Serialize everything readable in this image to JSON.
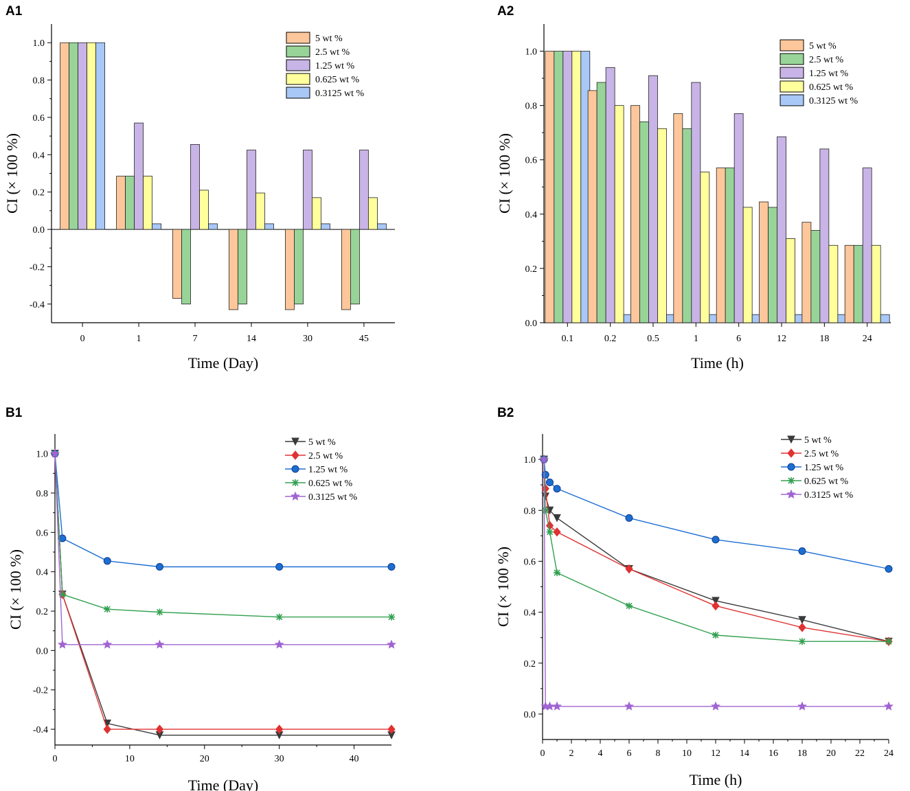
{
  "panels": {
    "A1": "A1",
    "A2": "A2",
    "B1": "B1",
    "B2": "B2"
  },
  "colors": {
    "5 wt%": "#fdc79b",
    "2.5 wt%": "#98d498",
    "1.25 wt%": "#c8b4e6",
    "0.625 wt%": "#ffff9c",
    "0.3125 wt%": "#a8c8f8",
    "line_5": "#3a3a3a",
    "line_2_5": "#e03232",
    "line_1_25": "#1e6ed2",
    "line_0_625": "#32a050",
    "line_0_3125": "#a064d2"
  },
  "chart_data": [
    {
      "id": "A1",
      "type": "bar",
      "title": "",
      "xlabel": "Time (Day)",
      "ylabel": "CI (× 100 %)",
      "ylim": [
        -0.5,
        1.1
      ],
      "yticks": [
        "-0.4",
        "-0.2",
        "0.0",
        "0.2",
        "0.4",
        "0.6",
        "0.8",
        "1.0"
      ],
      "categories": [
        "0",
        "1",
        "7",
        "14",
        "30",
        "45"
      ],
      "series": [
        {
          "name": "5 wt%",
          "legend": "5 wt %",
          "values": [
            1.0,
            0.285,
            -0.37,
            -0.43,
            -0.43,
            -0.43
          ]
        },
        {
          "name": "2.5 wt%",
          "legend": "2.5 wt %",
          "values": [
            1.0,
            0.285,
            -0.4,
            -0.4,
            -0.4,
            -0.4
          ]
        },
        {
          "name": "1.25 wt%",
          "legend": "1.25 wt %",
          "values": [
            1.0,
            0.57,
            0.455,
            0.425,
            0.425,
            0.425
          ]
        },
        {
          "name": "0.625 wt%",
          "legend": "0.625 wt %",
          "values": [
            1.0,
            0.285,
            0.21,
            0.195,
            0.17,
            0.17
          ]
        },
        {
          "name": "0.3125 wt%",
          "legend": "0.3125 wt %",
          "values": [
            1.0,
            0.03,
            0.03,
            0.03,
            0.03,
            0.03
          ]
        }
      ]
    },
    {
      "id": "A2",
      "type": "bar",
      "title": "",
      "xlabel": "Time (h)",
      "ylabel": "CI (× 100 %)",
      "ylim": [
        0,
        1.1
      ],
      "yticks": [
        "0.0",
        "0.2",
        "0.4",
        "0.6",
        "0.8",
        "1.0"
      ],
      "categories": [
        "0.1",
        "0.2",
        "0.5",
        "1",
        "6",
        "12",
        "18",
        "24"
      ],
      "series": [
        {
          "name": "5 wt%",
          "legend": "5 wt %",
          "values": [
            1.0,
            0.855,
            0.8,
            0.77,
            0.57,
            0.445,
            0.37,
            0.285
          ]
        },
        {
          "name": "2.5 wt%",
          "legend": "2.5 wt %",
          "values": [
            1.0,
            0.885,
            0.74,
            0.715,
            0.57,
            0.425,
            0.34,
            0.285
          ]
        },
        {
          "name": "1.25 wt%",
          "legend": "1.25 wt %",
          "values": [
            1.0,
            0.94,
            0.91,
            0.885,
            0.77,
            0.685,
            0.64,
            0.57
          ]
        },
        {
          "name": "0.625 wt%",
          "legend": "0.625 wt %",
          "values": [
            1.0,
            0.8,
            0.715,
            0.555,
            0.425,
            0.31,
            0.285,
            0.285
          ]
        },
        {
          "name": "0.3125 wt%",
          "legend": "0.3125 wt %",
          "values": [
            1.0,
            0.03,
            0.03,
            0.03,
            0.03,
            0.03,
            0.03,
            0.03
          ]
        }
      ]
    },
    {
      "id": "B1",
      "type": "line",
      "title": "",
      "xlabel": "Time (Day)",
      "ylabel": "CI (× 100 %)",
      "xlim": [
        0,
        45
      ],
      "ylim": [
        -0.48,
        1.1
      ],
      "xticks": [
        "0",
        "10",
        "20",
        "30",
        "40"
      ],
      "yticks": [
        "-0.4",
        "-0.2",
        "0.0",
        "0.2",
        "0.4",
        "0.6",
        "0.8",
        "1.0"
      ],
      "x": [
        0,
        1,
        7,
        14,
        30,
        45
      ],
      "series": [
        {
          "name": "5 wt%",
          "legend": "5 wt %",
          "color_key": "line_5",
          "marker": "triangle-down",
          "values": [
            1.0,
            0.285,
            -0.37,
            -0.43,
            -0.43,
            -0.43
          ]
        },
        {
          "name": "2.5 wt%",
          "legend": "2.5 wt %",
          "color_key": "line_2_5",
          "marker": "diamond",
          "values": [
            1.0,
            0.285,
            -0.4,
            -0.4,
            -0.4,
            -0.4
          ]
        },
        {
          "name": "1.25 wt%",
          "legend": "1.25 wt %",
          "color_key": "line_1_25",
          "marker": "circle",
          "values": [
            1.0,
            0.57,
            0.455,
            0.425,
            0.425,
            0.425
          ]
        },
        {
          "name": "0.625 wt%",
          "legend": "0.625 wt %",
          "color_key": "line_0_625",
          "marker": "asterisk",
          "values": [
            1.0,
            0.285,
            0.21,
            0.195,
            0.17,
            0.17
          ]
        },
        {
          "name": "0.3125 wt%",
          "legend": "0.3125 wt %",
          "color_key": "line_0_3125",
          "marker": "star",
          "values": [
            1.0,
            0.03,
            0.03,
            0.03,
            0.03,
            0.03
          ]
        }
      ]
    },
    {
      "id": "B2",
      "type": "line",
      "title": "",
      "xlabel": "Time (h)",
      "ylabel": "CI (× 100 %)",
      "xlim": [
        0,
        24
      ],
      "ylim": [
        -0.1,
        1.1
      ],
      "xticks": [
        "0",
        "2",
        "4",
        "6",
        "8",
        "10",
        "12",
        "14",
        "16",
        "18",
        "20",
        "22",
        "24"
      ],
      "yticks": [
        "0.0",
        "0.2",
        "0.4",
        "0.6",
        "0.8",
        "1.0"
      ],
      "x": [
        0.1,
        0.2,
        0.5,
        1,
        6,
        12,
        18,
        24
      ],
      "series": [
        {
          "name": "5 wt%",
          "legend": "5 wt %",
          "color_key": "line_5",
          "marker": "triangle-down",
          "values": [
            1.0,
            0.855,
            0.8,
            0.77,
            0.57,
            0.445,
            0.37,
            0.285
          ]
        },
        {
          "name": "2.5 wt%",
          "legend": "2.5 wt %",
          "color_key": "line_2_5",
          "marker": "diamond",
          "values": [
            1.0,
            0.885,
            0.74,
            0.715,
            0.57,
            0.425,
            0.34,
            0.285
          ]
        },
        {
          "name": "1.25 wt%",
          "legend": "1.25 wt %",
          "color_key": "line_1_25",
          "marker": "circle",
          "values": [
            1.0,
            0.94,
            0.91,
            0.885,
            0.77,
            0.685,
            0.64,
            0.57
          ]
        },
        {
          "name": "0.625 wt%",
          "legend": "0.625 wt %",
          "color_key": "line_0_625",
          "marker": "asterisk",
          "values": [
            1.0,
            0.8,
            0.715,
            0.555,
            0.425,
            0.31,
            0.285,
            0.285
          ]
        },
        {
          "name": "0.3125 wt%",
          "legend": "0.3125 wt %",
          "color_key": "line_0_3125",
          "marker": "star",
          "values": [
            1.0,
            0.03,
            0.03,
            0.03,
            0.03,
            0.03,
            0.03,
            0.03
          ]
        }
      ]
    }
  ]
}
